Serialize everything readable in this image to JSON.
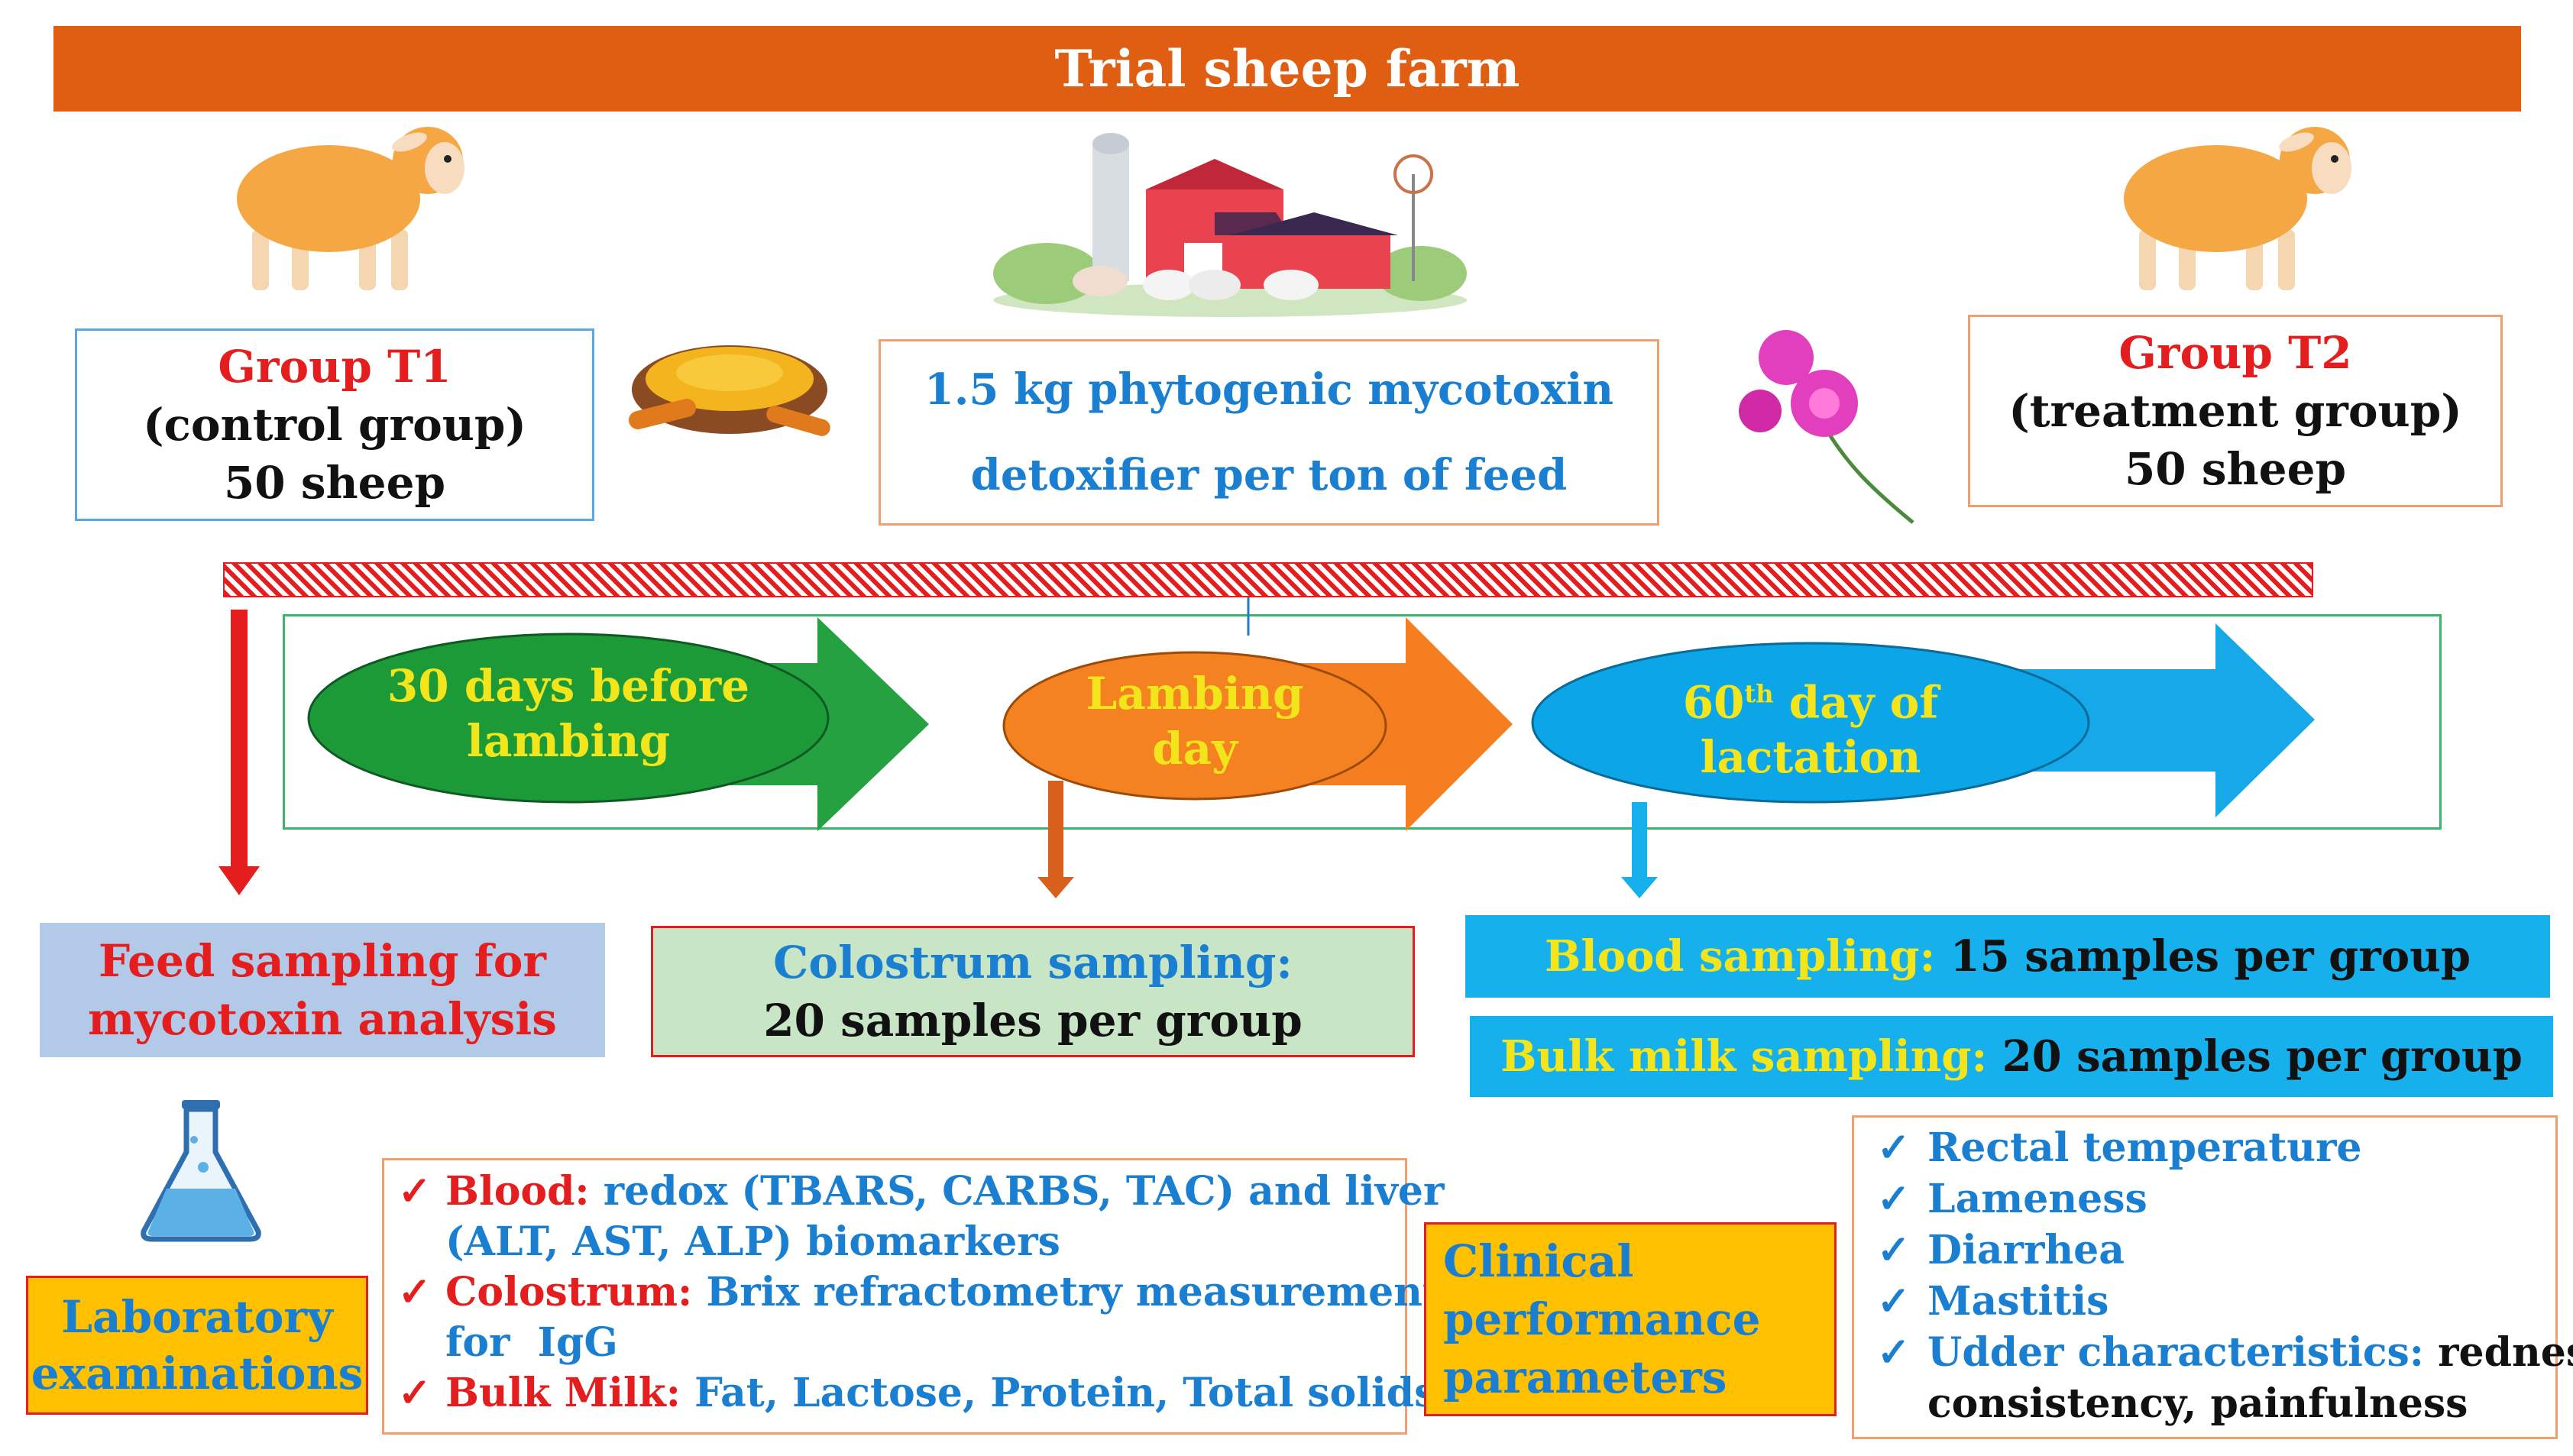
{
  "title": "Trial sheep farm",
  "group_t1": {
    "name": "Group T1",
    "desc": "(control group)",
    "count": "50 sheep"
  },
  "group_t2": {
    "name": "Group T2",
    "desc": "(treatment group)",
    "count": "50 sheep"
  },
  "treatment": {
    "line1": "1.5 kg phytogenic mycotoxin",
    "line2": "detoxifier per ton of feed"
  },
  "timeline": {
    "stage1": {
      "line1": "30 days before",
      "line2": "lambing"
    },
    "stage2": {
      "line1": "Lambing",
      "line2": "day"
    },
    "stage3": {
      "prefix": "60",
      "sup": "th",
      "suffix": " day of",
      "line2": "lactation"
    }
  },
  "feed_sampling": {
    "line1": "Feed sampling for",
    "line2": "mycotoxin analysis"
  },
  "colostrum_sampling": {
    "label": "Colostrum sampling:",
    "value": "20 samples per group"
  },
  "blood_sampling": {
    "label": "Blood sampling:",
    "value": " 15 samples per group"
  },
  "milk_sampling": {
    "label": "Bulk milk sampling:",
    "value": " 20 samples per group"
  },
  "lab": {
    "line1": "Laboratory",
    "line2": "examinations"
  },
  "clinical": {
    "line1": "Clinical",
    "line2": "performance",
    "line3": "parameters"
  },
  "lab_items": {
    "blood_label": "Blood:",
    "blood_l1": " redox (TBARS, CARBS, TAC) and liver",
    "blood_l2": "(ALT, AST, ALP) biomarkers",
    "colostrum_label": "Colostrum:",
    "colostrum_l1": " Brix refractometry measurements",
    "colostrum_l2": "for  IgG",
    "milk_label": "Bulk Milk:",
    "milk_l1": " Fat, Lactose, Protein, Total solids"
  },
  "clinical_items": {
    "i1": "Rectal temperature",
    "i2": "Lameness",
    "i3": "Diarrhea",
    "i4": "Mastitis",
    "i5_label": "Udder characteristics:",
    "i5_l1": " redness,",
    "i5_l2": "consistency, painfulness"
  },
  "colors": {
    "banner": "#e05e12",
    "red": "#e41e1e",
    "blue": "#1a7fd0",
    "yellow": "#f2e51c",
    "cyan": "#16b0ec",
    "amber": "#ffc000"
  },
  "icons": [
    "sheep-icon",
    "farm-icon",
    "curcuma-powder-icon",
    "milk-thistle-flower-icon",
    "lab-flask-icon"
  ]
}
